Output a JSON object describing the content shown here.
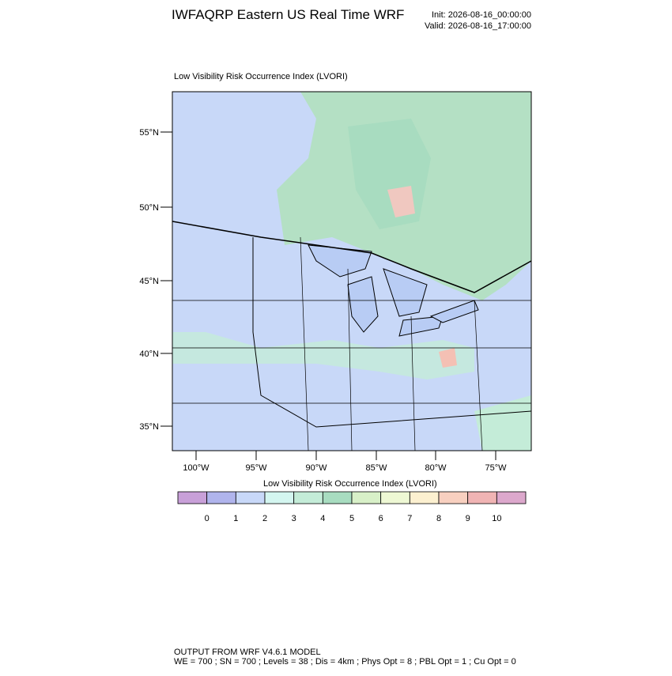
{
  "header": {
    "title": "IWFAQRP Eastern US Real Time WRF",
    "init": "Init: 2026-08-16_00:00:00",
    "valid": "Valid: 2026-08-16_17:00:00"
  },
  "map": {
    "title": "Low Visibility Risk Occurrence Index   (LVORI)",
    "lat_labels": [
      "55°N",
      "50°N",
      "45°N",
      "40°N",
      "35°N"
    ],
    "lon_labels": [
      "100°W",
      "95°W",
      "90°W",
      "85°W",
      "80°W",
      "75°W"
    ]
  },
  "colorbar": {
    "title": "Low Visibility Risk Occurrence Index  (LVORI)",
    "colors": [
      "#c8a0d8",
      "#b0b4ec",
      "#c8d8f8",
      "#d4f6f0",
      "#c4ecd8",
      "#a8dcc0",
      "#d8f0c8",
      "#eef8d4",
      "#fcf0d0",
      "#f8d0c0",
      "#f0b4b4",
      "#dca8cc"
    ],
    "labels": [
      "0",
      "1",
      "2",
      "3",
      "4",
      "5",
      "6",
      "7",
      "8",
      "9",
      "10"
    ]
  },
  "footer": {
    "line1": "OUTPUT FROM WRF V4.6.1 MODEL",
    "line2": "WE = 700 ; SN = 700 ; Levels = 38 ; Dis = 4km ; Phys Opt = 8 ; PBL Opt = 1 ; Cu Opt = 0"
  }
}
